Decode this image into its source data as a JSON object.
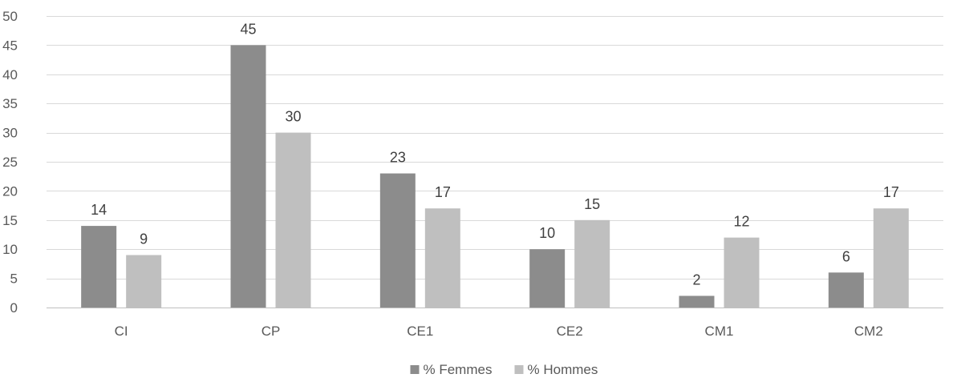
{
  "chart_data": {
    "type": "bar",
    "categories": [
      "CI",
      "CP",
      "CE1",
      "CE2",
      "CM1",
      "CM2"
    ],
    "series": [
      {
        "name": "% Femmes",
        "values": [
          14,
          45,
          23,
          10,
          2,
          6
        ],
        "color": "#8c8c8c"
      },
      {
        "name": "% Hommes",
        "values": [
          9,
          30,
          17,
          15,
          12,
          17
        ],
        "color": "#bfbfbf"
      }
    ],
    "yticks": [
      "0",
      "5",
      "10",
      "15",
      "20",
      "25",
      "30",
      "35",
      "40",
      "45",
      "50"
    ],
    "ylim": [
      0,
      50
    ],
    "grid": true,
    "legend_position": "bottom-center",
    "gridline_color": "#d9d9d9",
    "axis_color": "#bfbfbf"
  }
}
